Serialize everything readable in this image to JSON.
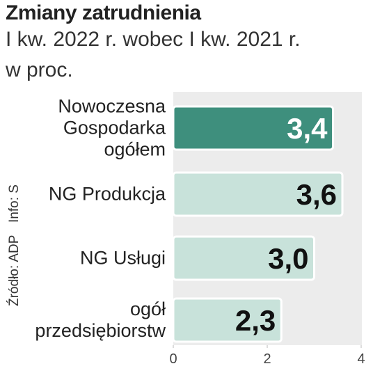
{
  "chart_data": {
    "type": "bar",
    "orientation": "horizontal",
    "title": "Zmiany zatrudnienia",
    "subtitle": "I kw. 2022 r. wobec I kw. 2021 r.",
    "unit_note": "w proc.",
    "source": "Źródło: ADP",
    "credit": "Info: S",
    "categories": [
      "Nowoczesna Gospodarka ogółem",
      "NG Produkcja",
      "NG Usługi",
      "ogół przedsiębiorstw"
    ],
    "values": [
      3.4,
      3.6,
      3.0,
      2.3
    ],
    "value_labels": [
      "3,4",
      "3,6",
      "3,0",
      "2,3"
    ],
    "colors": [
      "#3e8f7d",
      "#c8e2da",
      "#c8e2da",
      "#c8e2da"
    ],
    "label_colors": [
      "#ffffff",
      "#111111",
      "#111111",
      "#111111"
    ],
    "xlim": [
      0,
      4
    ],
    "xticks": [
      0,
      2,
      4
    ]
  }
}
